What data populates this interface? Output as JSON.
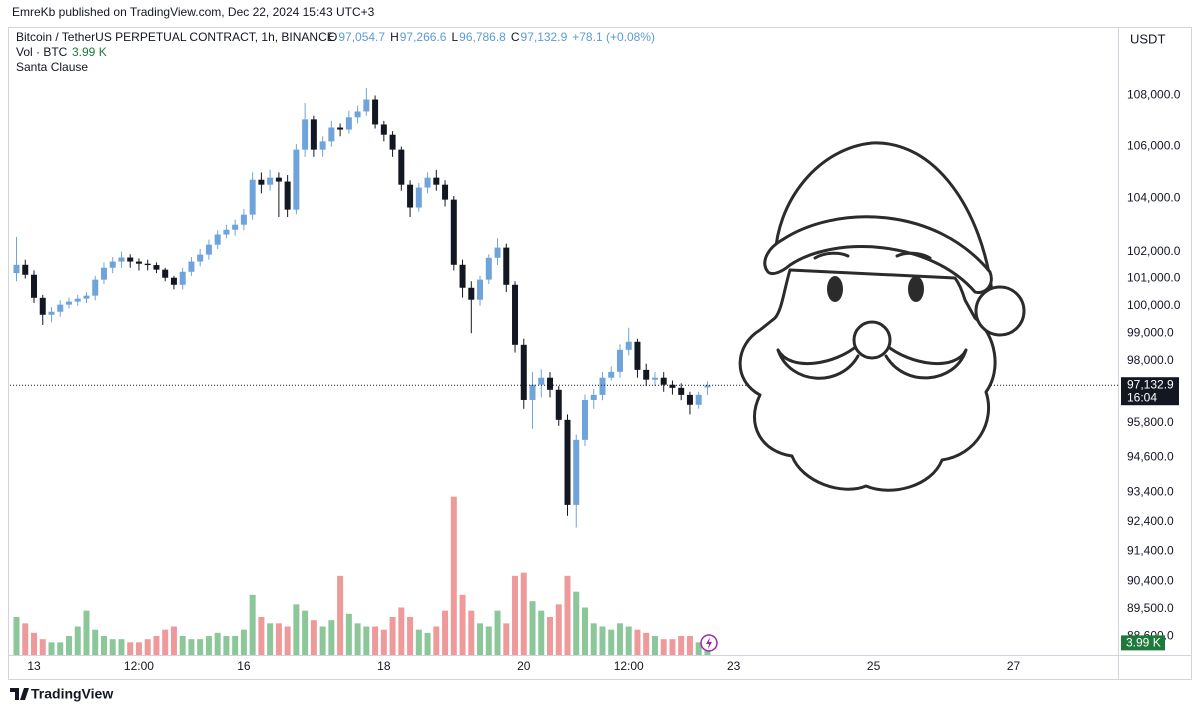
{
  "header": "EmreKb published on TradingView.com, Dec 22, 2024 15:43 UTC+3",
  "footer": "TradingView",
  "chart_data": {
    "type": "candlestick",
    "title": "Bitcoin / TetherUS PERPETUAL CONTRACT, 1h, BINANCE",
    "ohlc_labels": [
      {
        "key": "O",
        "value": "97,054.7"
      },
      {
        "key": "H",
        "value": "97,266.6"
      },
      {
        "key": "L",
        "value": "96,786.8"
      },
      {
        "key": "C",
        "value": "97,132.9"
      }
    ],
    "change": "+78.1 (+0.08%)",
    "volume_label": "Vol · BTC",
    "volume_value": "3.99 K",
    "indicator": "Santa Clause",
    "currency": "USDT",
    "last_price_label": "97,132.9",
    "countdown": "16:04",
    "log_scale": true,
    "grid": false,
    "up_color": "#6fa3dc",
    "down_color": "#131722",
    "volume_up_color": "#8cc79a",
    "volume_down_color": "#ef9a9a",
    "xlim": [
      "2024-12-12T15:46",
      "2024-12-28T11:50"
    ],
    "xticks": [
      {
        "value": "2024-12-13T00:00",
        "label": "13"
      },
      {
        "value": "2024-12-14T12:00",
        "label": "12:00"
      },
      {
        "value": "2024-12-16T00:00",
        "label": "16"
      },
      {
        "value": "2024-12-18T00:00",
        "label": "18"
      },
      {
        "value": "2024-12-20T00:00",
        "label": "20"
      },
      {
        "value": "2024-12-21T12:00",
        "label": "12:00"
      },
      {
        "value": "2024-12-23T00:00",
        "label": "23"
      },
      {
        "value": "2024-12-25T00:00",
        "label": "25"
      },
      {
        "value": "2024-12-27T00:00",
        "label": "27"
      }
    ],
    "ylim": [
      88000,
      110700
    ],
    "yticks": [
      {
        "value": 108000,
        "label": "108,000.0"
      },
      {
        "value": 106000,
        "label": "106,000.0"
      },
      {
        "value": 104000,
        "label": "104,000.0"
      },
      {
        "value": 102000,
        "label": "102,000.0"
      },
      {
        "value": 101000,
        "label": "101,000.0"
      },
      {
        "value": 100000,
        "label": "100,000.0"
      },
      {
        "value": 99000,
        "label": "99,000.0"
      },
      {
        "value": 98000,
        "label": "98,000.0"
      },
      {
        "value": 95800,
        "label": "95,800.0"
      },
      {
        "value": 94600,
        "label": "94,600.0"
      },
      {
        "value": 93400,
        "label": "93,400.0"
      },
      {
        "value": 92400,
        "label": "92,400.0"
      },
      {
        "value": 91400,
        "label": "91,400.0"
      },
      {
        "value": 90400,
        "label": "90,400.0"
      },
      {
        "value": 89500,
        "label": "89,500.0"
      },
      {
        "value": 88600,
        "label": "88,600.0"
      }
    ],
    "x": [
      "2024-12-12T18:00",
      "2024-12-12T21:00",
      "2024-12-13T00:00",
      "2024-12-13T03:00",
      "2024-12-13T06:00",
      "2024-12-13T09:00",
      "2024-12-13T12:00",
      "2024-12-13T15:00",
      "2024-12-13T18:00",
      "2024-12-13T21:00",
      "2024-12-14T00:00",
      "2024-12-14T03:00",
      "2024-12-14T06:00",
      "2024-12-14T09:00",
      "2024-12-14T12:00",
      "2024-12-14T15:00",
      "2024-12-14T18:00",
      "2024-12-14T21:00",
      "2024-12-15T00:00",
      "2024-12-15T03:00",
      "2024-12-15T06:00",
      "2024-12-15T09:00",
      "2024-12-15T12:00",
      "2024-12-15T15:00",
      "2024-12-15T18:00",
      "2024-12-15T21:00",
      "2024-12-16T00:00",
      "2024-12-16T03:00",
      "2024-12-16T06:00",
      "2024-12-16T09:00",
      "2024-12-16T12:00",
      "2024-12-16T15:00",
      "2024-12-16T18:00",
      "2024-12-16T21:00",
      "2024-12-17T00:00",
      "2024-12-17T03:00",
      "2024-12-17T06:00",
      "2024-12-17T09:00",
      "2024-12-17T12:00",
      "2024-12-17T15:00",
      "2024-12-17T18:00",
      "2024-12-17T21:00",
      "2024-12-18T00:00",
      "2024-12-18T03:00",
      "2024-12-18T06:00",
      "2024-12-18T09:00",
      "2024-12-18T12:00",
      "2024-12-18T15:00",
      "2024-12-18T18:00",
      "2024-12-18T21:00",
      "2024-12-19T00:00",
      "2024-12-19T03:00",
      "2024-12-19T06:00",
      "2024-12-19T09:00",
      "2024-12-19T12:00",
      "2024-12-19T15:00",
      "2024-12-19T18:00",
      "2024-12-19T21:00",
      "2024-12-20T00:00",
      "2024-12-20T03:00",
      "2024-12-20T06:00",
      "2024-12-20T09:00",
      "2024-12-20T12:00",
      "2024-12-20T15:00",
      "2024-12-20T18:00",
      "2024-12-20T21:00",
      "2024-12-21T00:00",
      "2024-12-21T03:00",
      "2024-12-21T06:00",
      "2024-12-21T09:00",
      "2024-12-21T12:00",
      "2024-12-21T15:00",
      "2024-12-21T18:00",
      "2024-12-21T21:00",
      "2024-12-22T00:00",
      "2024-12-22T03:00",
      "2024-12-22T06:00",
      "2024-12-22T09:00",
      "2024-12-22T12:00",
      "2024-12-22T15:00"
    ],
    "open": [
      101200,
      101510,
      101140,
      100290,
      99670,
      99780,
      100040,
      100150,
      100260,
      100370,
      100960,
      101400,
      101630,
      101780,
      101630,
      101550,
      101500,
      101330,
      101030,
      100770,
      101250,
      101630,
      101890,
      102260,
      102640,
      102820,
      103010,
      103390,
      104720,
      104530,
      104800,
      104650,
      103580,
      105880,
      107060,
      105880,
      106200,
      106740,
      106660,
      107140,
      107370,
      107840,
      106860,
      106460,
      105880,
      104530,
      103660,
      104420,
      104800,
      104530,
      103960,
      101510,
      100660,
      100220,
      100960,
      101770,
      102150,
      100770,
      98580,
      96610,
      97150,
      97400,
      96970,
      95910,
      92970,
      95210,
      96610,
      96790,
      97400,
      97610,
      98400,
      98690,
      97680,
      97330,
      97400,
      97150,
      97040,
      96790,
      96440,
      97054.7
    ],
    "high": [
      102550,
      101700,
      101300,
      100400,
      99950,
      100200,
      100300,
      100400,
      100500,
      101100,
      101600,
      101800,
      102000,
      101900,
      101750,
      101700,
      101600,
      101400,
      101100,
      101400,
      101800,
      102100,
      102450,
      102800,
      103000,
      103200,
      103600,
      105000,
      105000,
      105100,
      105000,
      104900,
      106100,
      107700,
      107200,
      106400,
      107000,
      106900,
      107400,
      107600,
      108300,
      108000,
      107000,
      106600,
      106000,
      104700,
      104600,
      105000,
      105100,
      104700,
      104100,
      101700,
      100900,
      101100,
      101900,
      102500,
      102300,
      100900,
      98800,
      97600,
      97700,
      97600,
      97100,
      96100,
      95400,
      96800,
      97000,
      97600,
      97800,
      98600,
      99200,
      98800,
      97900,
      97600,
      97600,
      97300,
      97200,
      96900,
      96900,
      97266.6
    ],
    "low": [
      100900,
      101000,
      100100,
      99300,
      99400,
      99600,
      99900,
      100000,
      100100,
      100200,
      100800,
      101200,
      101400,
      101400,
      101300,
      101300,
      101200,
      100900,
      100600,
      100600,
      101100,
      101450,
      101700,
      102100,
      102500,
      102600,
      102800,
      103200,
      104200,
      104300,
      103300,
      103300,
      103400,
      105600,
      105600,
      105600,
      106000,
      106400,
      106500,
      106900,
      107200,
      106700,
      106200,
      105600,
      104300,
      103300,
      103500,
      104200,
      104300,
      103700,
      101300,
      100300,
      99000,
      100000,
      100800,
      101500,
      100500,
      98300,
      96300,
      95600,
      96700,
      96700,
      95700,
      92600,
      92200,
      95000,
      96300,
      96600,
      97300,
      97400,
      98200,
      97400,
      97100,
      97100,
      96900,
      96800,
      96600,
      96100,
      96300,
      96786.8
    ],
    "close": [
      101510,
      101140,
      100290,
      99670,
      99780,
      100040,
      100150,
      100260,
      100370,
      100960,
      101400,
      101630,
      101780,
      101630,
      101550,
      101500,
      101330,
      101030,
      100770,
      101250,
      101630,
      101890,
      102260,
      102640,
      102820,
      103010,
      103390,
      104720,
      104530,
      104800,
      104650,
      103580,
      105880,
      107060,
      105880,
      106200,
      106740,
      106660,
      107140,
      107370,
      107840,
      106860,
      106460,
      105880,
      104530,
      103660,
      104420,
      104800,
      104530,
      103960,
      101510,
      100660,
      100220,
      100960,
      101770,
      102150,
      100770,
      98580,
      96610,
      97150,
      97400,
      96970,
      95910,
      92970,
      95210,
      96610,
      96790,
      97400,
      97610,
      98400,
      98690,
      97680,
      97330,
      97400,
      97150,
      97040,
      96790,
      96440,
      96790,
      97132.9
    ],
    "volume": {
      "ylim": [
        0,
        60
      ],
      "values": [
        12,
        10,
        7,
        5,
        4,
        4,
        6,
        9,
        14,
        8,
        6,
        5,
        5,
        4,
        4,
        5,
        6,
        8,
        9,
        6,
        5,
        5,
        6,
        7,
        6,
        6,
        8,
        19,
        12,
        10,
        10,
        9,
        16,
        14,
        11,
        9,
        11,
        25,
        13,
        10,
        9,
        9,
        8,
        12,
        15,
        12,
        8,
        7,
        9,
        14,
        50,
        19,
        14,
        10,
        9,
        14,
        10,
        25,
        26,
        17,
        14,
        12,
        16,
        25,
        20,
        15,
        10,
        9,
        8,
        10,
        9,
        8,
        7,
        6,
        5,
        5,
        6,
        6,
        4,
        3.99
      ]
    }
  }
}
